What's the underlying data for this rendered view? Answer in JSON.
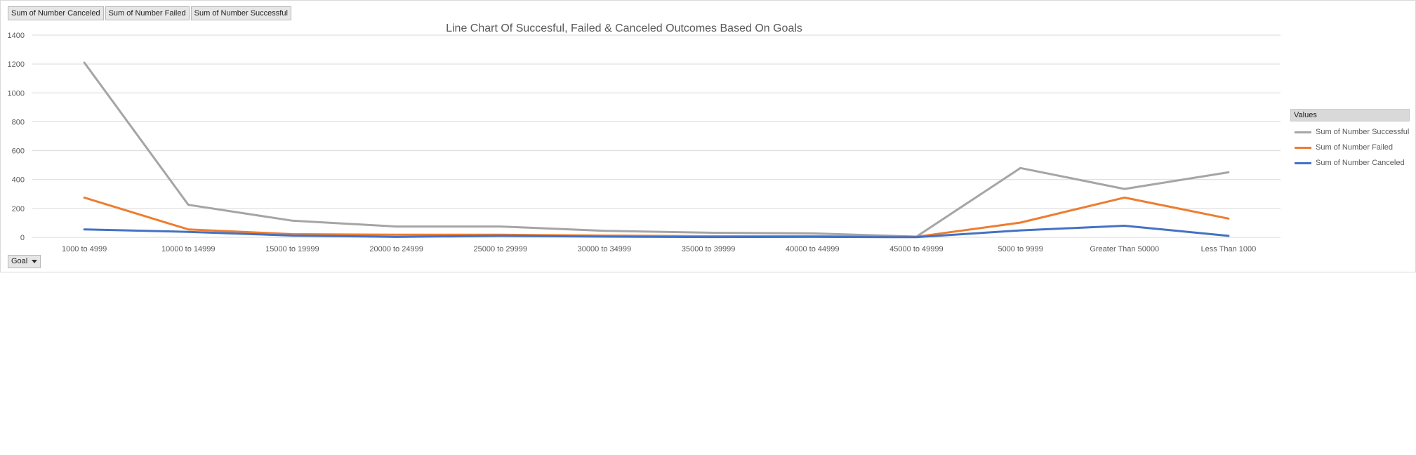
{
  "field_buttons": [
    {
      "label": "Sum of Number Canceled"
    },
    {
      "label": "Sum of Number Failed"
    },
    {
      "label": "Sum of Number Successful"
    }
  ],
  "axis_field_button": {
    "label": "Goal"
  },
  "legend": {
    "header": "Values",
    "items": [
      {
        "label": "Sum of Number Successful",
        "color": "#a5a5a5"
      },
      {
        "label": "Sum of Number Failed",
        "color": "#ed7d31"
      },
      {
        "label": "Sum of Number Canceled",
        "color": "#4472c4"
      }
    ]
  },
  "chart_data": {
    "type": "line",
    "title": "Line Chart Of Succesful, Failed & Canceled Outcomes Based On Goals",
    "xlabel": "",
    "ylabel": "",
    "ylim": [
      0,
      1400
    ],
    "yticks": [
      0,
      200,
      400,
      600,
      800,
      1000,
      1200,
      1400
    ],
    "grid": true,
    "legend_position": "right",
    "categories": [
      "1000 to 4999",
      "10000 to 14999",
      "15000 to 19999",
      "20000 to 24999",
      "25000 to 29999",
      "30000 to 34999",
      "35000 to 39999",
      "40000 to 44999",
      "45000 to 49999",
      "5000 to 9999",
      "Greater Than 50000",
      "Less Than 1000"
    ],
    "series": [
      {
        "name": "Sum of Number Successful",
        "color": "#a5a5a5",
        "values": [
          1210,
          225,
          115,
          75,
          75,
          45,
          32,
          27,
          5,
          480,
          335,
          450
        ]
      },
      {
        "name": "Sum of Number Failed",
        "color": "#ed7d31",
        "values": [
          275,
          55,
          22,
          18,
          18,
          12,
          8,
          8,
          4,
          102,
          275,
          130
        ]
      },
      {
        "name": "Sum of Number Canceled",
        "color": "#4472c4",
        "values": [
          55,
          38,
          12,
          3,
          10,
          5,
          2,
          3,
          1,
          48,
          80,
          10
        ]
      }
    ]
  }
}
